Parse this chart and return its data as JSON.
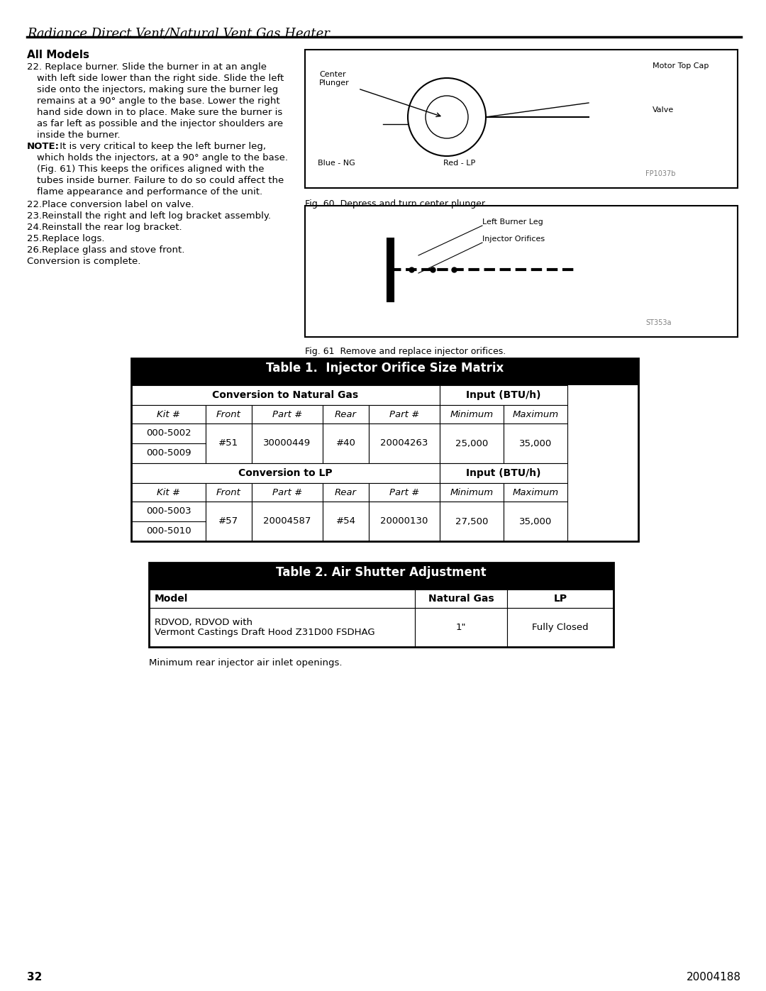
{
  "page_title": "Radiance Direct Vent/Natural Vent Gas Heater",
  "page_number_left": "32",
  "page_number_right": "20004188",
  "section_title": "All Models",
  "body_text": [
    "22. Replace burner. Slide the burner in at an angle",
    "    with left side lower than the right side. Slide the left",
    "    side onto the injectors, making sure the burner leg",
    "    remains at a 90° angle to the base. Lower the right",
    "    hand side down in to place. Make sure the burner is",
    "    as far left as possible and the injector shoulders are",
    "    inside the burner.",
    "NOTE: It is very critical to keep the left burner leg,",
    "   which holds the injectors, at a 90° angle to the base.",
    "   (Fig. 61) This keeps the orifices aligned with the",
    "   tubes inside burner. Failure to do so could affect the",
    "   flame appearance and performance of the unit.",
    "22.Place conversion label on valve.",
    "23.Reinstall the right and left log bracket assembly.",
    "24.Reinstall the rear log bracket.",
    "25.Replace logs.",
    "26.Replace glass and stove front.",
    "Conversion is complete."
  ],
  "fig60_caption": "Fig. 60  Depress and turn center plunger.",
  "fig61_caption": "Fig. 61  Remove and replace injector orifices.",
  "table1_title": "Table 1.  Injector Orifice Size Matrix",
  "table1_col_header1": "Conversion to Natural Gas",
  "table1_col_header2": "Input (BTU/h)",
  "table1_lp_header1": "Conversion to LP",
  "table1_lp_header2": "Input (BTU/h)",
  "table1_headers": [
    "Kit #",
    "Front",
    "Part #",
    "Rear",
    "Part #",
    "Minimum",
    "Maximum"
  ],
  "table1_ng_rows": [
    [
      "000-5002",
      "#51",
      "30000449",
      "#40",
      "20004263",
      "25,000",
      "35,000"
    ],
    [
      "000-5009",
      "",
      "",
      "",
      "",
      "",
      ""
    ]
  ],
  "table1_lp_rows": [
    [
      "000-5003",
      "#57",
      "20004587",
      "#54",
      "20000130",
      "27,500",
      "35,000"
    ],
    [
      "000-5010",
      "",
      "",
      "",
      "",
      "",
      ""
    ]
  ],
  "table2_title": "Table 2. Air Shutter Adjustment",
  "table2_headers": [
    "Model",
    "Natural Gas",
    "LP"
  ],
  "table2_rows": [
    [
      "RDVOD, RDVOD with\nVermont Castings Draft Hood Z31D00 FSDHAG",
      "1\"",
      "Fully Closed"
    ]
  ],
  "table2_caption": "Minimum rear injector air inlet openings.",
  "bg_color": "#ffffff",
  "table_header_bg": "#000000",
  "table_header_fg": "#ffffff",
  "table_border_color": "#000000",
  "table_cell_bg": "#ffffff",
  "table_cell_fg": "#000000"
}
